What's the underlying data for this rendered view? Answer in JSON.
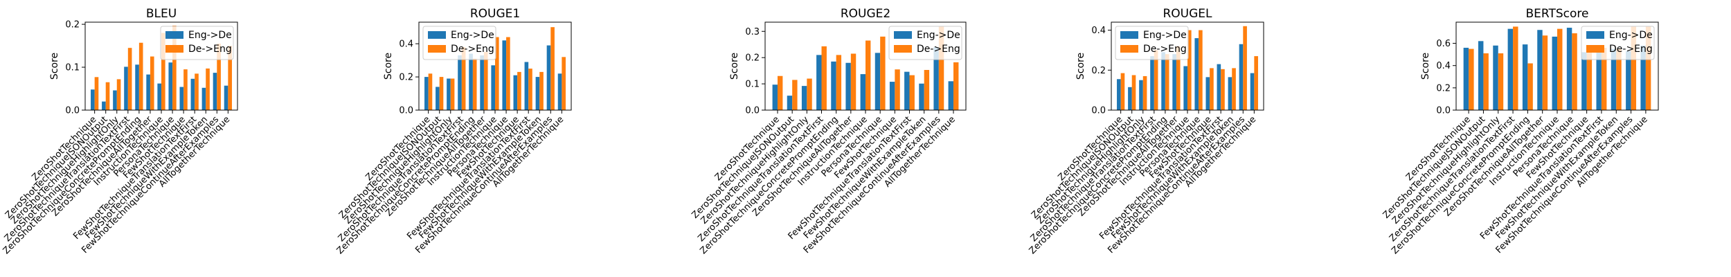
{
  "chart_data": [
    {
      "type": "bar",
      "title": "BLEU",
      "ylabel": "Score",
      "xlabel": "",
      "ylim": [
        0,
        0.205
      ],
      "yticks": [
        "0.0",
        "0.1",
        "0.2"
      ],
      "legend_position": "top-right",
      "categories": [
        "ZeroShotTechnique",
        "ZeroShotTechniqueJSONOutput",
        "ZeroShotTechniqueHighlightOnly",
        "ZeroShotTechniqueTranslationTextFirst",
        "ZeroShotTechniqueConcretePromptEnding",
        "ZeroShotTechniqueAllTogether",
        "InstructionTechnique",
        "PersonaTechnique",
        "FewShotTechnique",
        "FewShotTechniqueTranslationTextFirst",
        "FewShotTechniqueWithExampleToken",
        "FewShotTechniqueContinueAfterExamples",
        "AllTogetherTechnique"
      ],
      "series": [
        {
          "name": "Eng->De",
          "values": [
            0.048,
            0.02,
            0.046,
            0.101,
            0.106,
            0.083,
            0.062,
            0.111,
            0.054,
            0.073,
            0.052,
            0.087,
            0.057
          ]
        },
        {
          "name": "De->Eng",
          "values": [
            0.077,
            0.065,
            0.072,
            0.145,
            0.157,
            0.125,
            0.18,
            0.197,
            0.095,
            0.085,
            0.097,
            0.155,
            0.15
          ]
        }
      ]
    },
    {
      "type": "bar",
      "title": "ROUGE1",
      "ylabel": "Score",
      "xlabel": "",
      "ylim": [
        0,
        0.53
      ],
      "yticks": [
        "0.0",
        "0.2",
        "0.4"
      ],
      "legend_position": "top-left",
      "categories": [
        "ZeroShotTechnique",
        "ZeroShotTechniqueJSONOutput",
        "ZeroShotTechniqueHighlightOnly",
        "ZeroShotTechniqueTranslationTextFirst",
        "ZeroShotTechniqueConcretePromptEnding",
        "ZeroShotTechniqueAllTogether",
        "InstructionTechnique",
        "PersonaTechnique",
        "FewShotTechnique",
        "FewShotTechniqueTranslationTextFirst",
        "FewShotTechniqueWithExampleToken",
        "FewShotTechniqueContinueAfterExamples",
        "AllTogetherTechnique"
      ],
      "series": [
        {
          "name": "Eng->De",
          "values": [
            0.2,
            0.14,
            0.19,
            0.33,
            0.34,
            0.33,
            0.27,
            0.42,
            0.21,
            0.29,
            0.2,
            0.39,
            0.22
          ]
        },
        {
          "name": "De->Eng",
          "values": [
            0.22,
            0.2,
            0.19,
            0.38,
            0.31,
            0.35,
            0.44,
            0.44,
            0.23,
            0.25,
            0.23,
            0.5,
            0.32
          ]
        }
      ]
    },
    {
      "type": "bar",
      "title": "ROUGE2",
      "ylabel": "Score",
      "xlabel": "",
      "ylim": [
        0,
        0.335
      ],
      "yticks": [
        "0.0",
        "0.1",
        "0.2",
        "0.3"
      ],
      "legend_position": "top-right",
      "categories": [
        "ZeroShotTechnique",
        "ZeroShotTechniqueJSONOutput",
        "ZeroShotTechniqueHighlightOnly",
        "ZeroShotTechniqueTranslationTextFirst",
        "ZeroShotTechniqueConcretePromptEnding",
        "ZeroShotTechniqueAllTogether",
        "InstructionTechnique",
        "PersonaTechnique",
        "FewShotTechnique",
        "FewShotTechniqueTranslationTextFirst",
        "FewShotTechniqueWithExampleToken",
        "FewShotTechniqueContinueAfterExamples",
        "AllTogetherTechnique"
      ],
      "series": [
        {
          "name": "Eng->De",
          "values": [
            0.097,
            0.055,
            0.092,
            0.21,
            0.185,
            0.18,
            0.137,
            0.218,
            0.108,
            0.146,
            0.101,
            0.24,
            0.11
          ]
        },
        {
          "name": "De->Eng",
          "values": [
            0.13,
            0.115,
            0.12,
            0.243,
            0.21,
            0.215,
            0.265,
            0.28,
            0.155,
            0.133,
            0.153,
            0.32,
            0.182
          ]
        }
      ]
    },
    {
      "type": "bar",
      "title": "ROUGEL",
      "ylabel": "Score",
      "xlabel": "",
      "ylim": [
        0,
        0.44
      ],
      "yticks": [
        "0.0",
        "0.2",
        "0.4"
      ],
      "legend_position": "top-left",
      "categories": [
        "ZeroShotTechnique",
        "ZeroShotTechniqueJSONOutput",
        "ZeroShotTechniqueHighlightOnly",
        "ZeroShotTechniqueTranslationTextFirst",
        "ZeroShotTechniqueConcretePromptEnding",
        "ZeroShotTechniqueAllTogether",
        "InstructionTechnique",
        "PersonaTechnique",
        "FewShotTechnique",
        "FewShotTechniqueTranslationTextFirst",
        "FewShotTechniqueWithExampleToken",
        "FewShotTechniqueContinueAfterExamples",
        "AllTogetherTechnique"
      ],
      "series": [
        {
          "name": "Eng->De",
          "values": [
            0.155,
            0.115,
            0.15,
            0.27,
            0.29,
            0.28,
            0.22,
            0.36,
            0.165,
            0.23,
            0.165,
            0.33,
            0.185
          ]
        },
        {
          "name": "De->Eng",
          "values": [
            0.185,
            0.175,
            0.17,
            0.3,
            0.28,
            0.32,
            0.4,
            0.4,
            0.21,
            0.205,
            0.21,
            0.42,
            0.27
          ]
        }
      ]
    },
    {
      "type": "bar",
      "title": "BERTScore",
      "ylabel": "Score",
      "xlabel": "",
      "ylim": [
        0,
        0.79
      ],
      "yticks": [
        "0.0",
        "0.2",
        "0.4",
        "0.6"
      ],
      "legend_position": "top-right",
      "categories": [
        "ZeroShotTechnique",
        "ZeroShotTechniqueJSONOutput",
        "ZeroShotTechniqueHighlightOnly",
        "ZeroShotTechniqueTranslationTextFirst",
        "ZeroShotTechniqueConcretePromptEnding",
        "ZeroShotTechniqueAllTogether",
        "InstructionTechnique",
        "PersonaTechnique",
        "FewShotTechnique",
        "FewShotTechniqueTranslationTextFirst",
        "FewShotTechniqueWithExampleToken",
        "FewShotTechniqueContinueAfterExamples",
        "AllTogetherTechnique"
      ],
      "series": [
        {
          "name": "Eng->De",
          "values": [
            0.56,
            0.62,
            0.58,
            0.73,
            0.59,
            0.72,
            0.66,
            0.74,
            0.52,
            0.56,
            0.55,
            0.53,
            0.58
          ]
        },
        {
          "name": "De->Eng",
          "values": [
            0.55,
            0.51,
            0.51,
            0.75,
            0.42,
            0.67,
            0.73,
            0.69,
            0.53,
            0.56,
            0.55,
            0.75,
            0.75
          ]
        }
      ]
    }
  ],
  "colors": {
    "Eng->De": "#1f77b4",
    "De->Eng": "#ff7f0e"
  }
}
